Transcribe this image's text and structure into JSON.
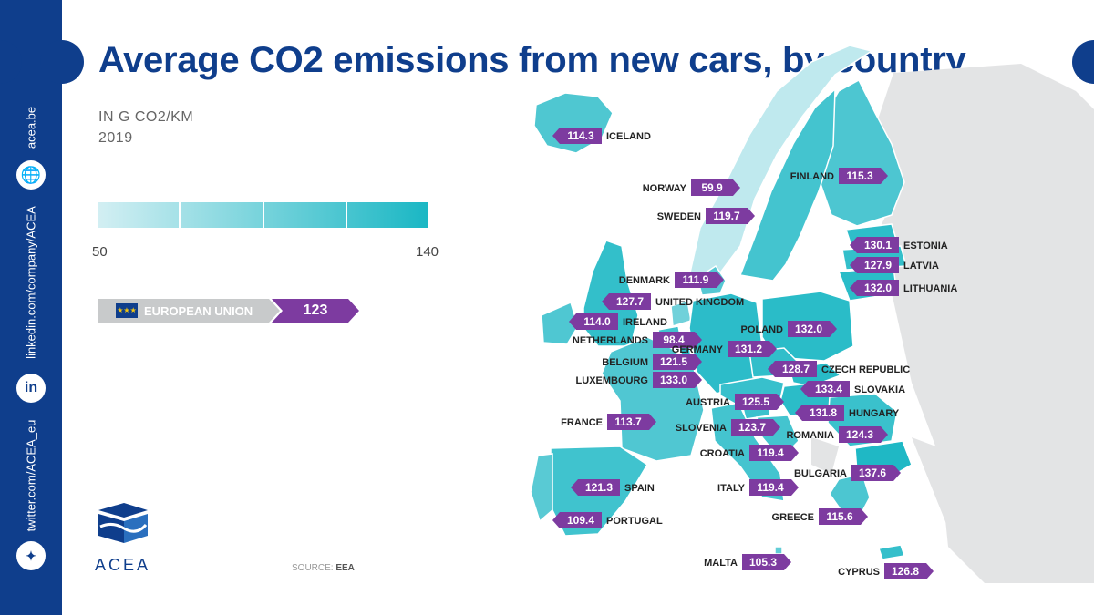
{
  "title": "Average CO2 emissions from new cars, by country",
  "subtitle_unit": "IN G CO2/KM",
  "subtitle_year": "2019",
  "legend": {
    "min": "50",
    "max": "140"
  },
  "eu": {
    "label": "EUROPEAN UNION",
    "value": "123"
  },
  "sidebar": {
    "website": "acea.be",
    "linkedin": "linkedin.com/company/ACEA",
    "twitter": "twitter.com/ACEA_eu",
    "linkedin_icon": "in"
  },
  "logo_text": "ACEA",
  "source_label": "SOURCE:",
  "source_value": "EEA",
  "colors": {
    "brand": "#0f3e8c",
    "label_bg": "#7d3ba0",
    "scale_low": "#d3eff3",
    "scale_high": "#1ab7c4",
    "nodata": "#e3e4e5"
  },
  "chart_data": {
    "type": "choropleth map",
    "title": "Average CO2 emissions from new cars, by country",
    "unit": "IN G CO2/KM",
    "year": "2019",
    "scale": [
      50,
      140
    ],
    "eu_average": 123,
    "countries": [
      {
        "name": "ICELAND",
        "value": 114.3
      },
      {
        "name": "NORWAY",
        "value": 59.9
      },
      {
        "name": "FINLAND",
        "value": 115.3
      },
      {
        "name": "SWEDEN",
        "value": 119.7
      },
      {
        "name": "ESTONIA",
        "value": 130.1
      },
      {
        "name": "LATVIA",
        "value": 127.9
      },
      {
        "name": "LITHUANIA",
        "value": 132.0
      },
      {
        "name": "DENMARK",
        "value": 111.9
      },
      {
        "name": "UNITED KINGDOM",
        "value": 127.7
      },
      {
        "name": "IRELAND",
        "value": 114.0
      },
      {
        "name": "NETHERLANDS",
        "value": 98.4
      },
      {
        "name": "BELGIUM",
        "value": 121.5
      },
      {
        "name": "LUXEMBOURG",
        "value": 133.0
      },
      {
        "name": "POLAND",
        "value": 132.0
      },
      {
        "name": "GERMANY",
        "value": 131.2
      },
      {
        "name": "CZECH REPUBLIC",
        "value": 128.7
      },
      {
        "name": "SLOVAKIA",
        "value": 133.4
      },
      {
        "name": "HUNGARY",
        "value": 131.8
      },
      {
        "name": "AUSTRIA",
        "value": 125.5
      },
      {
        "name": "SLOVENIA",
        "value": 123.7
      },
      {
        "name": "ROMANIA",
        "value": 124.3
      },
      {
        "name": "CROATIA",
        "value": 119.4
      },
      {
        "name": "FRANCE",
        "value": 113.7
      },
      {
        "name": "BULGARIA",
        "value": 137.6
      },
      {
        "name": "SPAIN",
        "value": 121.3
      },
      {
        "name": "ITALY",
        "value": 119.4
      },
      {
        "name": "PORTUGAL",
        "value": 109.4
      },
      {
        "name": "GREECE",
        "value": 115.6
      },
      {
        "name": "MALTA",
        "value": 105.3
      },
      {
        "name": "CYPRUS",
        "value": 126.8
      }
    ]
  }
}
